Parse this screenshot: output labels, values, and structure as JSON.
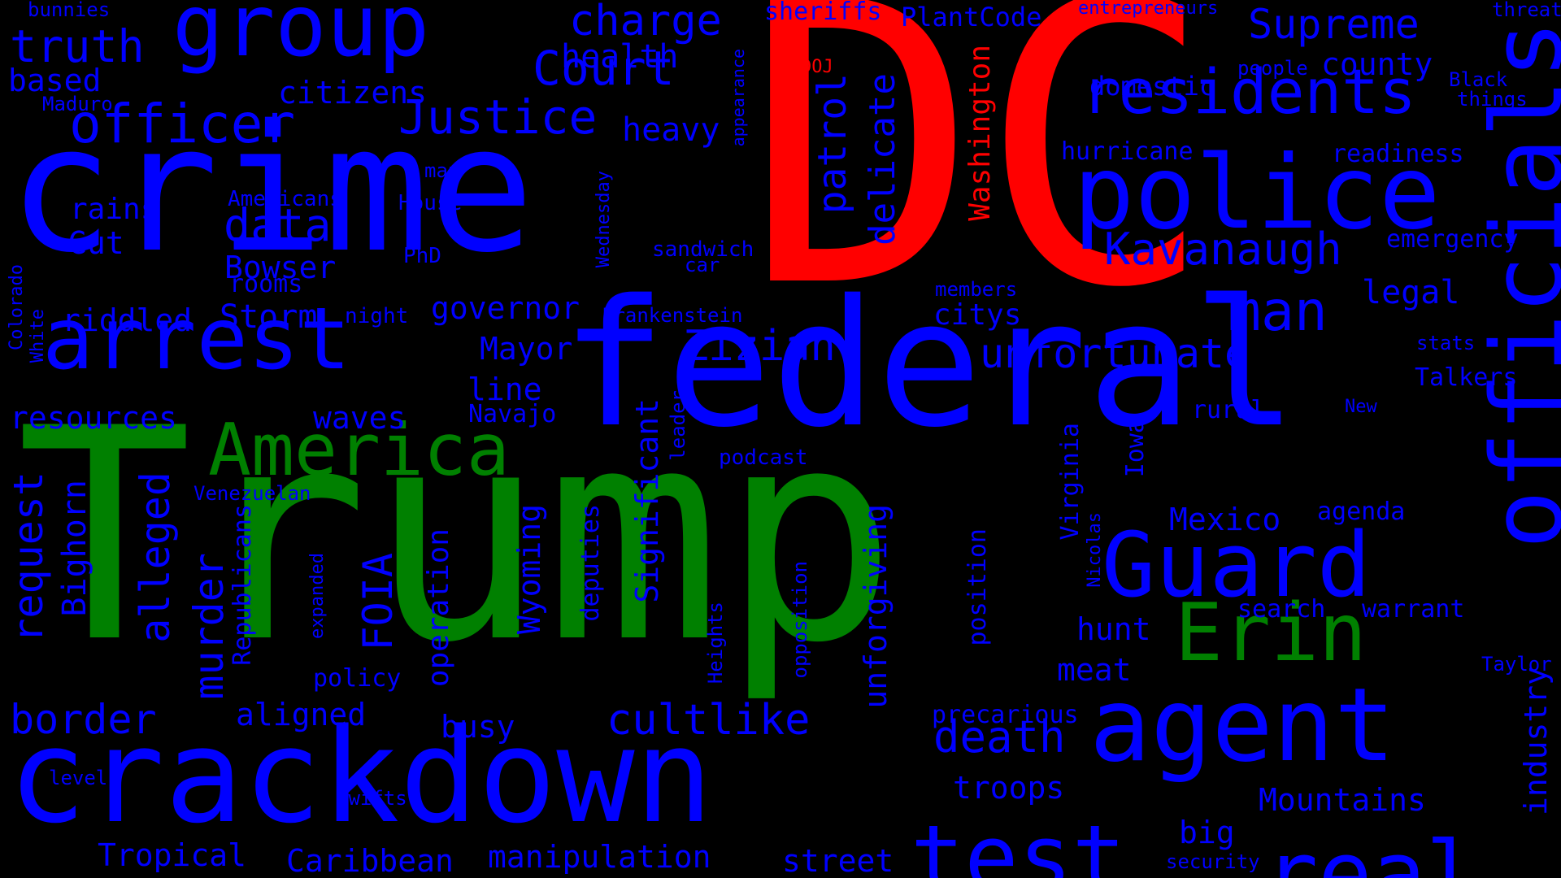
{
  "colors": {
    "background": "#000000",
    "blue": "#0000ff",
    "red": "#ff0000",
    "green": "#008000"
  },
  "words": [
    {
      "text": "DC",
      "color": "red"
    },
    {
      "text": "Trump",
      "color": "green"
    },
    {
      "text": "crime",
      "color": "blue"
    },
    {
      "text": "federal",
      "color": "blue"
    },
    {
      "text": "crackdown",
      "color": "blue"
    },
    {
      "text": "police",
      "color": "blue"
    },
    {
      "text": "officials",
      "color": "blue"
    },
    {
      "text": "agent",
      "color": "blue"
    },
    {
      "text": "Guard",
      "color": "blue"
    },
    {
      "text": "group",
      "color": "blue"
    },
    {
      "text": "arrest",
      "color": "blue"
    },
    {
      "text": "test",
      "color": "blue"
    },
    {
      "text": "real",
      "color": "blue"
    },
    {
      "text": "Erin",
      "color": "green"
    },
    {
      "text": "America",
      "color": "green"
    },
    {
      "text": "residents",
      "color": "blue"
    },
    {
      "text": "officer",
      "color": "blue"
    },
    {
      "text": "Justice",
      "color": "blue"
    },
    {
      "text": "Court",
      "color": "blue"
    },
    {
      "text": "truth",
      "color": "blue"
    },
    {
      "text": "charge",
      "color": "blue"
    },
    {
      "text": "Supreme",
      "color": "blue"
    },
    {
      "text": "Kavanaugh",
      "color": "blue"
    },
    {
      "text": "man",
      "color": "blue"
    },
    {
      "text": "unfortunate",
      "color": "blue"
    },
    {
      "text": "Zizian",
      "color": "blue"
    },
    {
      "text": "cultlike",
      "color": "blue"
    },
    {
      "text": "death",
      "color": "blue"
    },
    {
      "text": "border",
      "color": "blue"
    },
    {
      "text": "murder",
      "color": "blue"
    },
    {
      "text": "alleged",
      "color": "blue"
    },
    {
      "text": "request",
      "color": "blue"
    },
    {
      "text": "data",
      "color": "blue"
    },
    {
      "text": "patrol",
      "color": "blue"
    },
    {
      "text": "delicate",
      "color": "blue"
    },
    {
      "text": "Washington",
      "color": "red"
    },
    {
      "text": "DOJ",
      "color": "red"
    },
    {
      "text": "health",
      "color": "blue"
    },
    {
      "text": "heavy",
      "color": "blue"
    },
    {
      "text": "citizens",
      "color": "blue"
    },
    {
      "text": "based",
      "color": "blue"
    },
    {
      "text": "county",
      "color": "blue"
    },
    {
      "text": "domestic",
      "color": "blue"
    },
    {
      "text": "hurricane",
      "color": "blue"
    },
    {
      "text": "readiness",
      "color": "blue"
    },
    {
      "text": "emergency",
      "color": "blue"
    },
    {
      "text": "legal",
      "color": "blue"
    },
    {
      "text": "Bowser",
      "color": "blue"
    },
    {
      "text": "Storm",
      "color": "blue"
    },
    {
      "text": "riddled",
      "color": "blue"
    },
    {
      "text": "governor",
      "color": "blue"
    },
    {
      "text": "Mayor",
      "color": "blue"
    },
    {
      "text": "line",
      "color": "blue"
    },
    {
      "text": "waves",
      "color": "blue"
    },
    {
      "text": "resources",
      "color": "blue"
    },
    {
      "text": "rains",
      "color": "blue"
    },
    {
      "text": "Gut",
      "color": "blue"
    },
    {
      "text": "rooms",
      "color": "blue"
    },
    {
      "text": "citys",
      "color": "blue"
    },
    {
      "text": "rural",
      "color": "blue"
    },
    {
      "text": "Talkers",
      "color": "blue"
    },
    {
      "text": "Mexico",
      "color": "blue"
    },
    {
      "text": "agenda",
      "color": "blue"
    },
    {
      "text": "search",
      "color": "blue"
    },
    {
      "text": "warrant",
      "color": "blue"
    },
    {
      "text": "hunt",
      "color": "blue"
    },
    {
      "text": "meat",
      "color": "blue"
    },
    {
      "text": "precarious",
      "color": "blue"
    },
    {
      "text": "troops",
      "color": "blue"
    },
    {
      "text": "Mountains",
      "color": "blue"
    },
    {
      "text": "big",
      "color": "blue"
    },
    {
      "text": "industry",
      "color": "blue"
    },
    {
      "text": "manipulation",
      "color": "blue"
    },
    {
      "text": "Caribbean",
      "color": "blue"
    },
    {
      "text": "Tropical",
      "color": "blue"
    },
    {
      "text": "street",
      "color": "blue"
    },
    {
      "text": "aligned",
      "color": "blue"
    },
    {
      "text": "policy",
      "color": "blue"
    },
    {
      "text": "busy",
      "color": "blue"
    },
    {
      "text": "unforgiving",
      "color": "blue"
    },
    {
      "text": "position",
      "color": "blue"
    },
    {
      "text": "FOIA",
      "color": "blue"
    },
    {
      "text": "operation",
      "color": "blue"
    },
    {
      "text": "Wyoming",
      "color": "blue"
    },
    {
      "text": "deputies",
      "color": "blue"
    },
    {
      "text": "Significant",
      "color": "blue"
    },
    {
      "text": "Bighorn",
      "color": "blue"
    },
    {
      "text": "Republicans",
      "color": "blue"
    },
    {
      "text": "Virginia",
      "color": "blue"
    },
    {
      "text": "Iowa",
      "color": "blue"
    },
    {
      "text": "Navajo",
      "color": "blue"
    },
    {
      "text": "podcast",
      "color": "blue"
    },
    {
      "text": "Venezuelan",
      "color": "blue"
    },
    {
      "text": "leader",
      "color": "blue"
    },
    {
      "text": "Heights",
      "color": "blue"
    },
    {
      "text": "opposition",
      "color": "blue"
    },
    {
      "text": "expanded",
      "color": "blue"
    },
    {
      "text": "Nicolas",
      "color": "blue"
    },
    {
      "text": "Frankenstein",
      "color": "blue"
    },
    {
      "text": "members",
      "color": "blue"
    },
    {
      "text": "night",
      "color": "blue"
    },
    {
      "text": "PhD",
      "color": "blue"
    },
    {
      "text": "House",
      "color": "blue"
    },
    {
      "text": "Americans",
      "color": "blue"
    },
    {
      "text": "map",
      "color": "blue"
    },
    {
      "text": "Wednesday",
      "color": "blue"
    },
    {
      "text": "sandwich",
      "color": "blue"
    },
    {
      "text": "car",
      "color": "blue"
    },
    {
      "text": "appearance",
      "color": "blue"
    },
    {
      "text": "sheriffs",
      "color": "blue"
    },
    {
      "text": "PlantCode",
      "color": "blue"
    },
    {
      "text": "entrepreneurs",
      "color": "blue"
    },
    {
      "text": "threat",
      "color": "blue"
    },
    {
      "text": "people",
      "color": "blue"
    },
    {
      "text": "Black",
      "color": "blue"
    },
    {
      "text": "things",
      "color": "blue"
    },
    {
      "text": "stats",
      "color": "blue"
    },
    {
      "text": "New",
      "color": "blue"
    },
    {
      "text": "Taylor",
      "color": "blue"
    },
    {
      "text": "security",
      "color": "blue"
    },
    {
      "text": "level",
      "color": "blue"
    },
    {
      "text": "Swifts",
      "color": "blue"
    },
    {
      "text": "bunnies",
      "color": "blue"
    },
    {
      "text": "Maduro",
      "color": "blue"
    },
    {
      "text": "Colorado",
      "color": "blue"
    },
    {
      "text": "White",
      "color": "blue"
    }
  ]
}
